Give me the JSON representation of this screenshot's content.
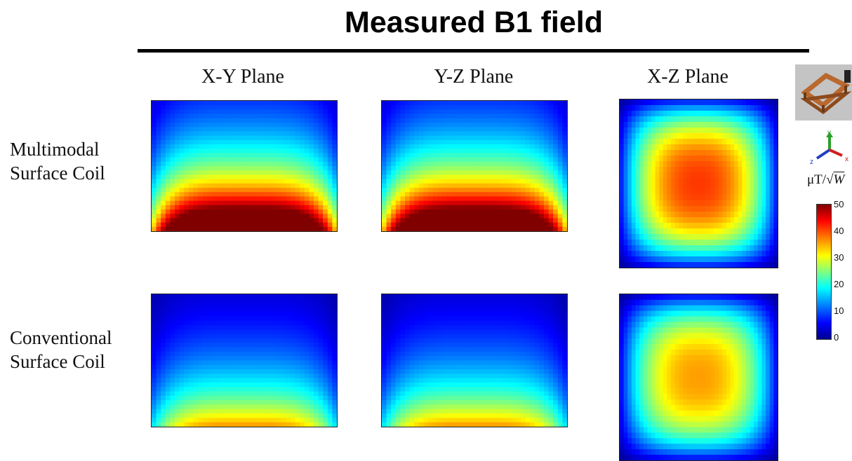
{
  "title": "Measured B1 field",
  "columns": [
    "X-Y Plane",
    "Y-Z Plane",
    "X-Z Plane"
  ],
  "rows": [
    {
      "label_line1": "Multimodal",
      "label_line2": "Surface Coil"
    },
    {
      "label_line1": "Conventional",
      "label_line2": "Surface Coil"
    }
  ],
  "colorbar": {
    "unit_prefix": "μT/",
    "unit_radicand": "W",
    "ticks": [
      "50",
      "40",
      "30",
      "20",
      "10",
      "0"
    ],
    "min": 0,
    "max": 50,
    "colormap": "jet"
  },
  "axes_icon": {
    "y": "y",
    "z": "z",
    "x": "x"
  },
  "chart_data": [
    {
      "type": "heatmap",
      "row": "Multimodal Surface Coil",
      "plane": "X-Y Plane",
      "max_value": 50,
      "pattern": "surface",
      "clim": [
        0,
        50
      ]
    },
    {
      "type": "heatmap",
      "row": "Multimodal Surface Coil",
      "plane": "Y-Z Plane",
      "max_value": 50,
      "pattern": "surface",
      "clim": [
        0,
        50
      ]
    },
    {
      "type": "heatmap",
      "row": "Multimodal Surface Coil",
      "plane": "X-Z Plane",
      "max_value": 41,
      "pattern": "square",
      "clim": [
        0,
        50
      ]
    },
    {
      "type": "heatmap",
      "row": "Conventional Surface Coil",
      "plane": "X-Y Plane",
      "max_value": 37,
      "pattern": "surface",
      "clim": [
        0,
        50
      ]
    },
    {
      "type": "heatmap",
      "row": "Conventional Surface Coil",
      "plane": "Y-Z Plane",
      "max_value": 37,
      "pattern": "surface",
      "clim": [
        0,
        50
      ]
    },
    {
      "type": "heatmap",
      "row": "Conventional Surface Coil",
      "plane": "X-Z Plane",
      "max_value": 36,
      "pattern": "square",
      "clim": [
        0,
        50
      ]
    }
  ]
}
